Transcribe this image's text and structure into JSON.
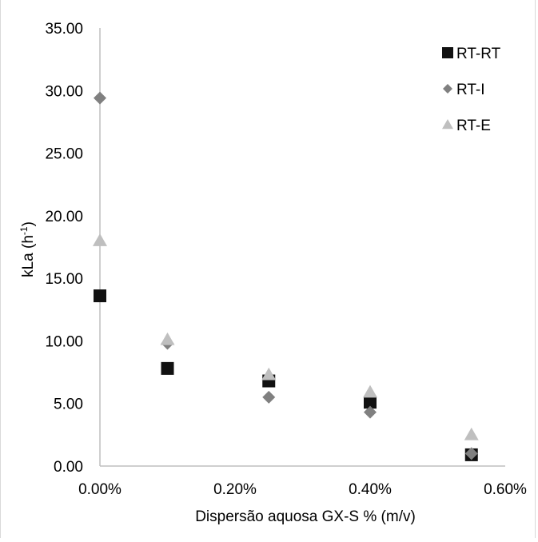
{
  "chart_data": {
    "type": "scatter",
    "title": "",
    "xlabel": "Dispersão aquosa GX-S % (m/v)",
    "ylabel_main": "kLa (h",
    "ylabel_sup": "-1",
    "ylabel_end": ")",
    "xlim": [
      0.0,
      0.6
    ],
    "ylim": [
      0.0,
      35.0
    ],
    "x_ticks": [
      0.0,
      0.2,
      0.4,
      0.6
    ],
    "x_tick_labels": [
      "0.00%",
      "0.20%",
      "0.40%",
      "0.60%"
    ],
    "y_ticks": [
      0,
      5,
      10,
      15,
      20,
      25,
      30,
      35
    ],
    "y_tick_labels": [
      "0.00",
      "5.00",
      "10.00",
      "15.00",
      "20.00",
      "25.00",
      "30.00",
      "35.00"
    ],
    "grid": false,
    "legend_position": "top-right",
    "series": [
      {
        "name": "RT-RT",
        "marker": "square",
        "color": "#111111",
        "x": [
          0.0,
          0.1,
          0.25,
          0.4,
          0.55
        ],
        "y": [
          13.6,
          7.8,
          6.8,
          5.1,
          0.9
        ]
      },
      {
        "name": "RT-I",
        "marker": "diamond",
        "color": "#808080",
        "x": [
          0.0,
          0.1,
          0.25,
          0.4,
          0.55
        ],
        "y": [
          29.4,
          9.8,
          5.5,
          4.3,
          1.0
        ]
      },
      {
        "name": "RT-E",
        "marker": "triangle",
        "color": "#bfbfbf",
        "x": [
          0.0,
          0.1,
          0.25,
          0.4,
          0.55
        ],
        "y": [
          18.0,
          10.1,
          7.3,
          5.9,
          2.5
        ]
      }
    ]
  }
}
